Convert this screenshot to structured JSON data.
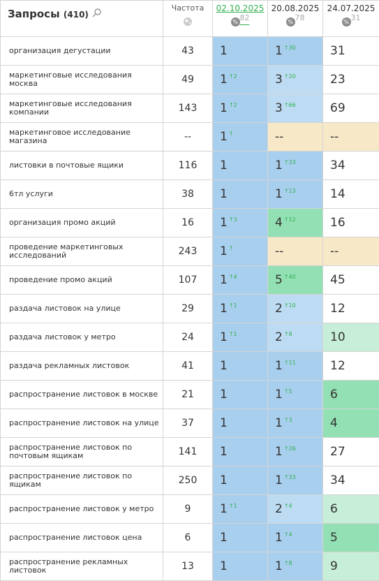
{
  "header": {
    "title": "Запросы",
    "count": "(410)",
    "freq": "Частота",
    "dates": [
      {
        "label": "02.10.2025",
        "pct": "82"
      },
      {
        "label": "20.08.2025",
        "pct": "78"
      },
      {
        "label": "24.07.2025",
        "pct": "31"
      }
    ]
  },
  "rows": [
    {
      "query": "организация дегустации",
      "freq": 43,
      "cells": [
        {
          "value": 1,
          "color": "#a9cfee"
        },
        {
          "value": 1,
          "delta": "↑30",
          "color": "#a9cfee"
        },
        {
          "value": 31,
          "color": "#ffffff"
        }
      ]
    },
    {
      "query": "маркетинговые исследования москва",
      "freq": 49,
      "cells": [
        {
          "value": 1,
          "delta": "↑2",
          "color": "#a9cfee"
        },
        {
          "value": 3,
          "delta": "↑20",
          "color": "#bddcf3"
        },
        {
          "value": 23,
          "color": "#ffffff"
        }
      ]
    },
    {
      "query": "маркетинговые исследования компании",
      "freq": 143,
      "cells": [
        {
          "value": 1,
          "delta": "↑2",
          "color": "#a9cfee"
        },
        {
          "value": 3,
          "delta": "↑66",
          "color": "#bddcf3"
        },
        {
          "value": 69,
          "color": "#ffffff"
        }
      ]
    },
    {
      "query": "маркетинговое исследование магазина",
      "freq": "--",
      "cells": [
        {
          "value": 1,
          "delta": "↑",
          "color": "#a9cfee"
        },
        {
          "value": "--",
          "color": "#f7e9c8"
        },
        {
          "value": "--",
          "color": "#f7e9c8"
        }
      ]
    },
    {
      "query": "листовки в почтовые ящики",
      "freq": 116,
      "cells": [
        {
          "value": 1,
          "color": "#a9cfee"
        },
        {
          "value": 1,
          "delta": "↑33",
          "color": "#a9cfee"
        },
        {
          "value": 34,
          "color": "#ffffff"
        }
      ]
    },
    {
      "query": "6тл услуги",
      "freq": 38,
      "cells": [
        {
          "value": 1,
          "color": "#a9cfee"
        },
        {
          "value": 1,
          "delta": "↑13",
          "color": "#a9cfee"
        },
        {
          "value": 14,
          "color": "#ffffff"
        }
      ]
    },
    {
      "query": "организация промо акций",
      "freq": 16,
      "cells": [
        {
          "value": 1,
          "delta": "↑3",
          "color": "#a9cfee"
        },
        {
          "value": 4,
          "delta": "↑12",
          "color": "#93e0b4"
        },
        {
          "value": 16,
          "color": "#ffffff"
        }
      ]
    },
    {
      "query": "проведение маркетинговых исследований",
      "freq": 243,
      "cells": [
        {
          "value": 1,
          "delta": "↑",
          "color": "#a9cfee"
        },
        {
          "value": "--",
          "color": "#f7e9c8"
        },
        {
          "value": "--",
          "color": "#f7e9c8"
        }
      ]
    },
    {
      "query": "проведение промо акций",
      "freq": 107,
      "cells": [
        {
          "value": 1,
          "delta": "↑4",
          "color": "#a9cfee"
        },
        {
          "value": 5,
          "delta": "↑40",
          "color": "#93e0b4"
        },
        {
          "value": 45,
          "color": "#ffffff"
        }
      ]
    },
    {
      "query": "раздача листовок на улице",
      "freq": 29,
      "cells": [
        {
          "value": 1,
          "delta": "↑1",
          "color": "#a9cfee"
        },
        {
          "value": 2,
          "delta": "↑10",
          "color": "#bddcf3"
        },
        {
          "value": 12,
          "color": "#ffffff"
        }
      ]
    },
    {
      "query": "раздача листовок у метро",
      "freq": 24,
      "cells": [
        {
          "value": 1,
          "delta": "↑1",
          "color": "#a9cfee"
        },
        {
          "value": 2,
          "delta": "↑8",
          "color": "#bddcf3"
        },
        {
          "value": 10,
          "color": "#c7eed8"
        }
      ]
    },
    {
      "query": "раздача рекламных листовок",
      "freq": 41,
      "cells": [
        {
          "value": 1,
          "color": "#a9cfee"
        },
        {
          "value": 1,
          "delta": "↑11",
          "color": "#a9cfee"
        },
        {
          "value": 12,
          "color": "#ffffff"
        }
      ]
    },
    {
      "query": "распространение листовок в москве",
      "freq": 21,
      "cells": [
        {
          "value": 1,
          "color": "#a9cfee"
        },
        {
          "value": 1,
          "delta": "↑5",
          "color": "#a9cfee"
        },
        {
          "value": 6,
          "color": "#93e0b4"
        }
      ]
    },
    {
      "query": "распространение листовок на улице",
      "freq": 37,
      "cells": [
        {
          "value": 1,
          "color": "#a9cfee"
        },
        {
          "value": 1,
          "delta": "↑3",
          "color": "#a9cfee"
        },
        {
          "value": 4,
          "color": "#93e0b4"
        }
      ]
    },
    {
      "query": "распространение листовок по почтовым ящикам",
      "freq": 141,
      "cells": [
        {
          "value": 1,
          "color": "#a9cfee"
        },
        {
          "value": 1,
          "delta": "↑26",
          "color": "#a9cfee"
        },
        {
          "value": 27,
          "color": "#ffffff"
        }
      ]
    },
    {
      "query": "распространение листовок по ящикам",
      "freq": 250,
      "cells": [
        {
          "value": 1,
          "color": "#a9cfee"
        },
        {
          "value": 1,
          "delta": "↑33",
          "color": "#a9cfee"
        },
        {
          "value": 34,
          "color": "#ffffff"
        }
      ]
    },
    {
      "query": "распространение листовок у метро",
      "freq": 9,
      "cells": [
        {
          "value": 1,
          "delta": "↑1",
          "color": "#a9cfee"
        },
        {
          "value": 2,
          "delta": "↑4",
          "color": "#bddcf3"
        },
        {
          "value": 6,
          "color": "#c7eed8"
        }
      ]
    },
    {
      "query": "распространение листовок цена",
      "freq": 6,
      "cells": [
        {
          "value": 1,
          "color": "#a9cfee"
        },
        {
          "value": 1,
          "delta": "↑4",
          "color": "#a9cfee"
        },
        {
          "value": 5,
          "color": "#93e0b4"
        }
      ]
    },
    {
      "query": "распространение рекламных листовок",
      "freq": 13,
      "cells": [
        {
          "value": 1,
          "color": "#a9cfee"
        },
        {
          "value": 1,
          "delta": "↑8",
          "color": "#a9cfee"
        },
        {
          "value": 9,
          "color": "#c7eed8"
        }
      ]
    }
  ]
}
